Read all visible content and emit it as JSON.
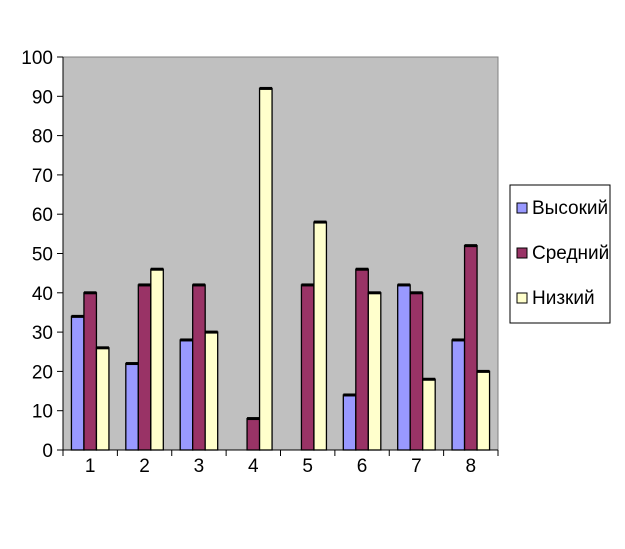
{
  "chart_data": {
    "type": "bar",
    "categories": [
      "1",
      "2",
      "3",
      "4",
      "5",
      "6",
      "7",
      "8"
    ],
    "series": [
      {
        "name": "Высокий",
        "color": "#9999ff",
        "values": [
          34,
          22,
          28,
          0,
          0,
          14,
          42,
          28
        ]
      },
      {
        "name": "Средний",
        "color": "#993366",
        "values": [
          40,
          42,
          42,
          8,
          42,
          46,
          40,
          52
        ]
      },
      {
        "name": "Низкий",
        "color": "#ffffcc",
        "values": [
          26,
          46,
          30,
          92,
          58,
          40,
          18,
          20
        ]
      }
    ],
    "ylim": [
      0,
      100
    ],
    "yticks": [
      "0",
      "10",
      "20",
      "30",
      "40",
      "50",
      "60",
      "70",
      "80",
      "90",
      "100"
    ],
    "plot_background": "#c0c0c0",
    "grid": false,
    "legend": "right"
  }
}
